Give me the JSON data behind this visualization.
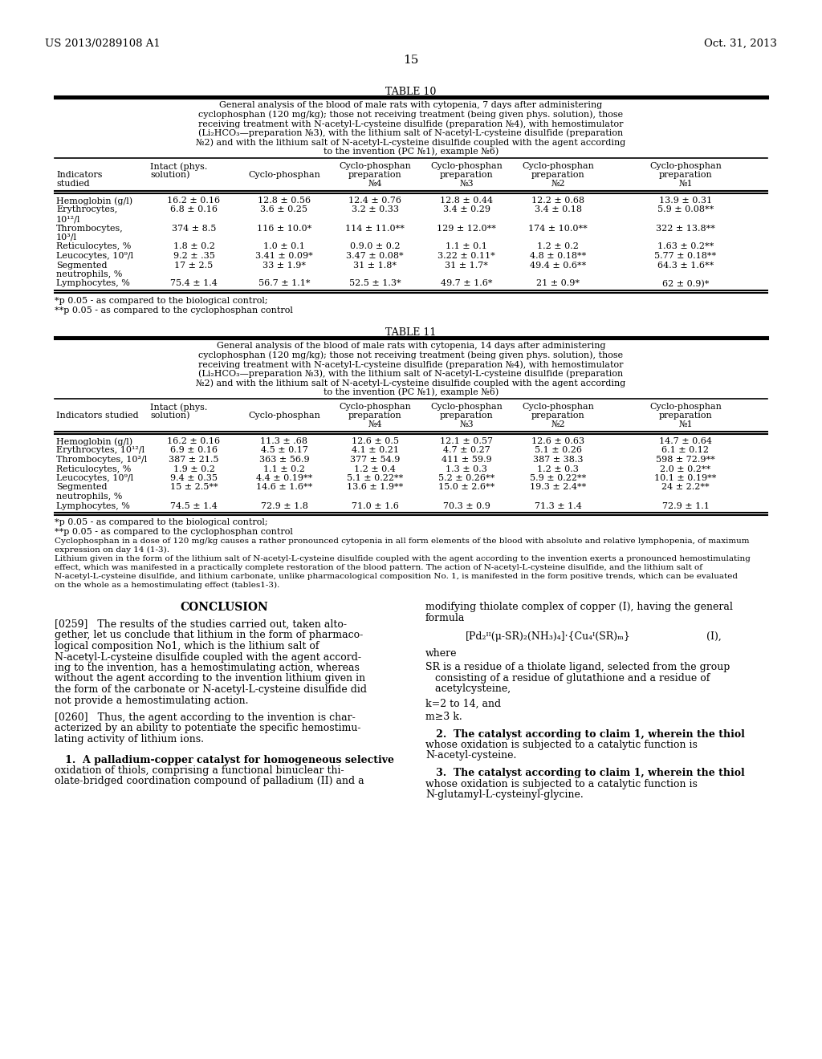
{
  "bg_color": "#ffffff",
  "header_left": "US 2013/0289108 A1",
  "header_right": "Oct. 31, 2013",
  "page_number": "15",
  "table10_title": "TABLE 10",
  "table10_caption": "General analysis of the blood of male rats with cytopenia, 7 days after administering\ncyclophosphan (120 mg/kg); those not receiving treatment (being given phys. solution), those\nreceiving treatment with N-acetyl-L-cysteine disulfide (preparation №4), with hemostimulator\n(Li₂HCO₃—preparation №3), with the lithium salt of N-acetyl-L-cysteine disulfide (preparation\n№2) and with the lithium salt of N-acetyl-L-cysteine disulfide coupled with the agent according\nto the invention (PC №1), example №6)",
  "table10_col_headers_row1": [
    "",
    "Intact (phys.",
    "",
    "Cyclo-phosphan",
    "Cyclo-phosphan",
    "Cyclo-phosphan",
    "Cyclo-phosphan"
  ],
  "table10_col_headers_row2": [
    "Indicators",
    "solution)",
    "Cyclo-phosphan",
    "preparation",
    "preparation",
    "preparation",
    "preparation"
  ],
  "table10_col_headers_row3": [
    "studied",
    "",
    "",
    "№4",
    "№3",
    "№2",
    "№1"
  ],
  "table10_rows": [
    [
      "Hemoglobin (g/l)",
      "16.2 ± 0.16",
      "12.8 ± 0.56",
      "12.4 ± 0.76",
      "12.8 ± 0.44",
      "12.2 ± 0.68",
      "13.9 ± 0.31"
    ],
    [
      "Erythrocytes,",
      "6.8 ± 0.16",
      "3.6 ± 0.25",
      "3.2 ± 0.33",
      "3.4 ± 0.29",
      "3.4 ± 0.18",
      "5.9 ± 0.08**"
    ],
    [
      "10¹²/l",
      "",
      "",
      "",
      "",
      "",
      ""
    ],
    [
      "Thrombocytes,",
      "374 ± 8.5",
      "116 ± 10.0*",
      "114 ± 11.0**",
      "129 ± 12.0**",
      "174 ± 10.0**",
      "322 ± 13.8**"
    ],
    [
      "10³/l",
      "",
      "",
      "",
      "",
      "",
      ""
    ],
    [
      "Reticulocytes, %",
      "1.8 ± 0.2",
      "1.0 ± 0.1",
      "0.9.0 ± 0.2",
      "1.1 ± 0.1",
      "1.2 ± 0.2",
      "1.63 ± 0.2**"
    ],
    [
      "Leucocytes, 10⁹/l",
      "9.2 ± .35",
      "3.41 ± 0.09*",
      "3.47 ± 0.08*",
      "3.22 ± 0.11*",
      "4.8 ± 0.18**",
      "5.77 ± 0.18**"
    ],
    [
      "Segmented",
      "17 ± 2.5",
      "33 ± 1.9*",
      "31 ± 1.8*",
      "31 ± 1.7*",
      "49.4 ± 0.6**",
      "64.3 ± 1.6**"
    ],
    [
      "neutrophils, %",
      "",
      "",
      "",
      "",
      "",
      ""
    ],
    [
      "Lymphocytes, %",
      "75.4 ± 1.4",
      "56.7 ± 1.1*",
      "52.5 ± 1.3*",
      "49.7 ± 1.6*",
      "21 ± 0.9*",
      "62 ± 0.9)*"
    ]
  ],
  "table10_footnote1": "*p 0.05 - as compared to the biological control;",
  "table10_footnote2": "**p 0.05 - as compared to the cyclophosphan control",
  "table11_title": "TABLE 11",
  "table11_caption": "General analysis of the blood of male rats with cytopenia, 14 days after administering\ncyclophosphan (120 mg/kg); those not receiving treatment (being given phys. solution), those\nreceiving treatment with N-acetyl-L-cysteine disulfide (preparation №4), with hemostimulator\n(Li₂HCO₃—preparation №3), with the lithium salt of N-acetyl-L-cysteine disulfide (preparation\n№2) and with the lithium salt of N-acetyl-L-cysteine disulfide coupled with the agent according\nto the invention (PC №1), example №6)",
  "table11_col_headers_row1": [
    "",
    "Intact (phys.",
    "",
    "Cyclo-phosphan",
    "Cyclo-phosphan",
    "Cyclo-phosphan",
    "Cyclo-phosphan"
  ],
  "table11_col_headers_row2": [
    "Indicators studied",
    "solution)",
    "Cyclo-phosphan",
    "preparation",
    "preparation",
    "preparation",
    "preparation"
  ],
  "table11_col_headers_row3": [
    "",
    "",
    "",
    "№4",
    "№3",
    "№2",
    "№1"
  ],
  "table11_rows": [
    [
      "Hemoglobin (g/l)",
      "16.2 ± 0.16",
      "11.3 ± .68",
      "12.6 ± 0.5",
      "12.1 ± 0.57",
      "12.6 ± 0.63",
      "14.7 ± 0.64"
    ],
    [
      "Erythrocytes, 10¹²/l",
      "6.9 ± 0.16",
      "4.5 ± 0.17",
      "4.1 ± 0.21",
      "4.7 ± 0.27",
      "5.1 ± 0.26",
      "6.1 ± 0.12"
    ],
    [
      "Thrombocytes, 10³/l",
      "387 ± 21.5",
      "363 ± 56.9",
      "377 ± 54.9",
      "411 ± 59.9",
      "387 ± 38.3",
      "598 ± 72.9**"
    ],
    [
      "Reticulocytes, %",
      "1.9 ± 0.2",
      "1.1 ± 0.2",
      "1.2 ± 0.4",
      "1.3 ± 0.3",
      "1.2 ± 0.3",
      "2.0 ± 0.2**"
    ],
    [
      "Leucocytes, 10⁹/l",
      "9.4 ± 0.35",
      "4.4 ± 0.19**",
      "5.1 ± 0.22**",
      "5.2 ± 0.26**",
      "5.9 ± 0.22**",
      "10.1 ± 0.19**"
    ],
    [
      "Segmented",
      "15 ± 2.5**",
      "14.6 ± 1.6**",
      "13.6 ± 1.9**",
      "15.0 ± 2.6**",
      "19.3 ± 2.4**",
      "24 ± 2.2**"
    ],
    [
      "neutrophils, %",
      "",
      "",
      "",
      "",
      "",
      ""
    ],
    [
      "Lymphocytes, %",
      "74.5 ± 1.4",
      "72.9 ± 1.8",
      "71.0 ± 1.6",
      "70.3 ± 0.9",
      "71.3 ± 1.4",
      "72.9 ± 1.1"
    ]
  ],
  "table11_footnote1": "*p 0.05 - as compared to the biological control;",
  "table11_footnote2": "**p 0.05 - as compared to the cyclophosphan control",
  "extra1": "Cyclophosphan in a dose of 120 mg/kg causes a rather pronounced cytopenia in all form elements of the blood with absolute and relative lymphopenia, of maximum\nexpression on day 14 (1-3).",
  "extra2a": "Lithium given in the form of the lithium salt of N-acetyl-L-cysteine disulfide coupled with the agent according to the invention exerts a pronounced hemostimulating",
  "extra2b": "effect, which was manifested in a practically complete restoration of the blood pattern. The action of N-acetyl-L-cysteine disulfide, and the lithium salt of",
  "extra2c": "N-acetyl-L-cysteine disulfide, and lithium carbonate, unlike pharmacological composition No. 1, is manifested in the form positive trends, which can be evaluated",
  "extra2d": "on the whole as a hemostimulating effect (tables1-3).",
  "conclusion_header": "CONCLUSION",
  "para_0259_lines": [
    "[0259]   The results of the studies carried out, taken alto-",
    "gether, let us conclude that lithium in the form of pharmaco-",
    "logical composition No1, which is the lithium salt of",
    "N-acetyl-L-cysteine disulfide coupled with the agent accord-",
    "ing to the invention, has a hemostimulating action, whereas",
    "without the agent according to the invention lithium given in",
    "the form of the carbonate or N-acetyl-L-cysteine disulfide did",
    "not provide a hemostimulating action."
  ],
  "para_0260_lines": [
    "[0260]   Thus, the agent according to the invention is char-",
    "acterized by an ability to potentiate the specific hemostimu-",
    "lating activity of lithium ions."
  ],
  "claim1_lines": [
    "   1.  A palladium-copper catalyst for homogeneous selective",
    "oxidation of thiols, comprising a functional binuclear thi-",
    "olate-bridged coordination compound of palladium (II) and a"
  ],
  "right_header_lines": [
    "modifying thiolate complex of copper (I), having the general",
    "formula"
  ],
  "formula_text": "[Pd₂ᴵᴵ(μ-SR)₂(NH₃)₄]·{Cu₄ᴵ(SR)ₘ}",
  "formula_label": "(I),",
  "where_text": "where",
  "sr_lines": [
    "SR is a residue of a thiolate ligand, selected from the group",
    "   consisting of a residue of glutathione and a residue of",
    "   acetylcysteine,"
  ],
  "k_text": "k=2 to 14, and",
  "m_text": "m≥3 k.",
  "claim2_lines": [
    "   2.  The catalyst according to claim 1, wherein the thiol",
    "whose oxidation is subjected to a catalytic function is",
    "N-acetyl-cysteine."
  ],
  "claim3_lines": [
    "   3.  The catalyst according to claim 1, wherein the thiol",
    "whose oxidation is subjected to a catalytic function is",
    "N-glutamyl-L-cysteinyl-glycine."
  ]
}
